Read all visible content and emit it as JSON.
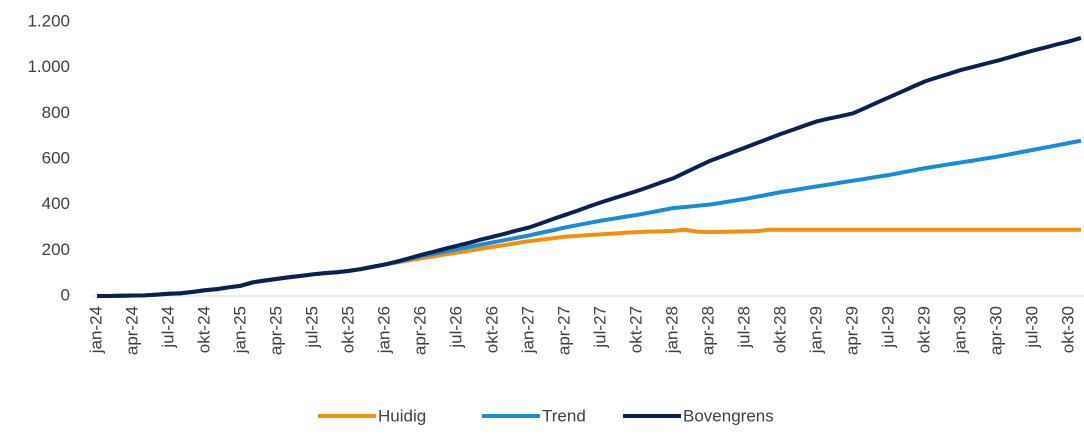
{
  "chart_data": {
    "type": "line",
    "categories": [
      "jan-24",
      null,
      null,
      "apr-24",
      null,
      null,
      "jul-24",
      null,
      null,
      "okt-24",
      null,
      null,
      "jan-25",
      null,
      null,
      "apr-25",
      null,
      null,
      "jul-25",
      null,
      null,
      "okt-25",
      null,
      null,
      "jan-26",
      null,
      null,
      "apr-26",
      null,
      null,
      "jul-26",
      null,
      null,
      "okt-26",
      null,
      null,
      "jan-27",
      null,
      null,
      "apr-27",
      null,
      null,
      "jul-27",
      null,
      null,
      "okt-27",
      null,
      null,
      "jan-28",
      null,
      null,
      "apr-28",
      null,
      null,
      "jul-28",
      null,
      null,
      "okt-28",
      null,
      null,
      "jan-29",
      null,
      null,
      "apr-29",
      null,
      null,
      "jul-29",
      null,
      null,
      "okt-29",
      null,
      null,
      "jan-30",
      null,
      null,
      "apr-30",
      null,
      null,
      "jul-30",
      null,
      null,
      "okt-30",
      null
    ],
    "series": [
      {
        "name": "Huidig",
        "color": "#f0900f",
        "values": [
          0,
          0,
          1,
          2,
          3,
          6,
          10,
          12,
          18,
          25,
          30,
          38,
          45,
          60,
          68,
          75,
          82,
          88,
          95,
          100,
          104,
          110,
          118,
          128,
          138,
          147,
          156,
          165,
          173,
          182,
          190,
          198,
          207,
          215,
          223,
          232,
          240,
          247,
          253,
          260,
          263,
          267,
          270,
          273,
          277,
          280,
          282,
          283,
          285,
          290,
          282,
          280,
          281,
          282,
          283,
          284,
          290,
          290,
          290,
          290,
          290,
          290,
          290,
          290,
          290,
          290,
          290,
          290,
          290,
          290,
          290,
          290,
          290,
          290,
          290,
          290,
          290,
          290,
          290,
          290,
          290,
          290,
          290
        ]
      },
      {
        "name": "Trend",
        "color": "#1a8bd8",
        "values": [
          0,
          0,
          1,
          2,
          3,
          6,
          10,
          12,
          18,
          25,
          30,
          38,
          45,
          60,
          68,
          75,
          82,
          88,
          95,
          100,
          104,
          110,
          118,
          128,
          138,
          150,
          162,
          175,
          185,
          195,
          205,
          215,
          225,
          235,
          245,
          255,
          265,
          277,
          288,
          300,
          310,
          320,
          330,
          338,
          347,
          355,
          365,
          375,
          385,
          390,
          395,
          400,
          408,
          417,
          425,
          435,
          445,
          455,
          463,
          472,
          480,
          488,
          497,
          505,
          513,
          522,
          530,
          540,
          550,
          560,
          568,
          577,
          585,
          593,
          602,
          610,
          620,
          630,
          640,
          650,
          660,
          670,
          680
        ]
      },
      {
        "name": "Bovengrens",
        "color": "#0b2151",
        "values": [
          0,
          0,
          1,
          2,
          3,
          6,
          10,
          12,
          18,
          25,
          30,
          38,
          45,
          60,
          68,
          75,
          82,
          88,
          95,
          100,
          104,
          110,
          118,
          128,
          138,
          151,
          165,
          180,
          193,
          207,
          220,
          233,
          247,
          260,
          273,
          287,
          300,
          318,
          337,
          355,
          373,
          392,
          410,
          427,
          443,
          460,
          478,
          497,
          515,
          540,
          565,
          590,
          610,
          630,
          650,
          670,
          690,
          710,
          728,
          747,
          765,
          777,
          788,
          800,
          823,
          847,
          870,
          893,
          917,
          940,
          957,
          973,
          990,
          1003,
          1017,
          1030,
          1045,
          1060,
          1075,
          1088,
          1102,
          1115,
          1130
        ]
      }
    ],
    "ylim": [
      0,
      1200
    ],
    "yticks": [
      0,
      200,
      400,
      600,
      800,
      {
        "value": 1000,
        "label": "1.000"
      },
      {
        "value": 1200,
        "label": "1.200"
      }
    ],
    "grid": false,
    "legend": "bottom"
  }
}
